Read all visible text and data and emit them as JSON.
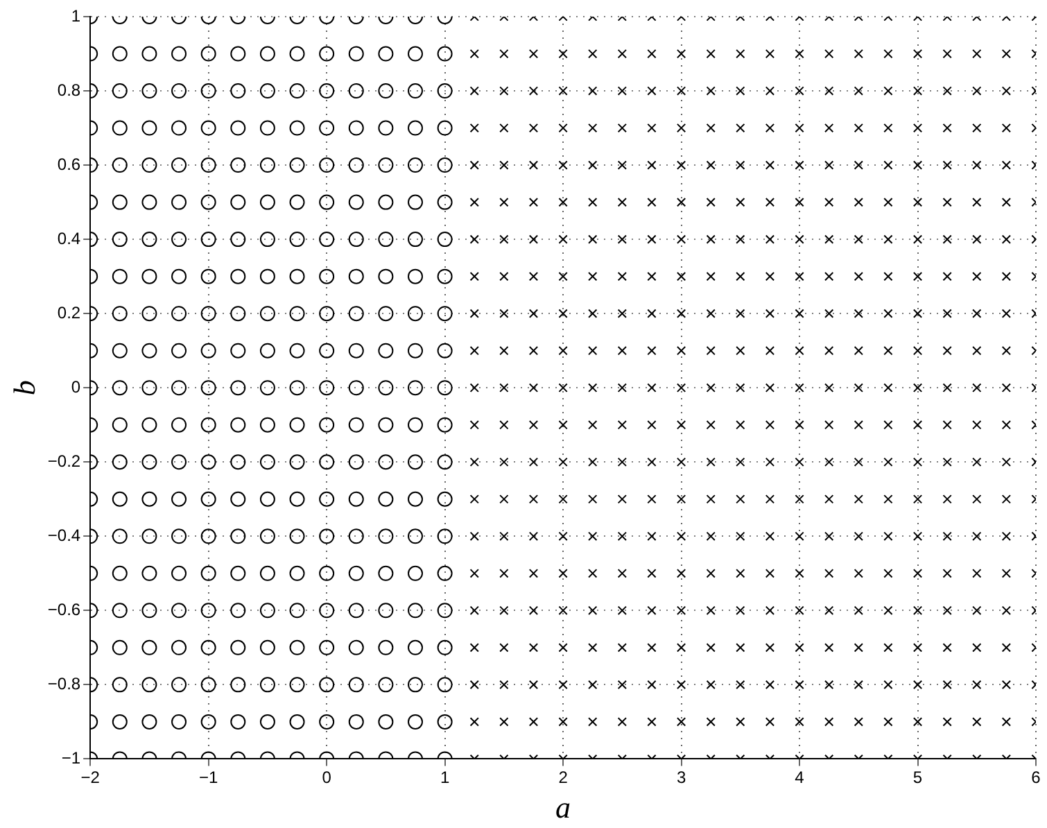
{
  "chart_data": {
    "type": "scatter",
    "xlabel": "a",
    "ylabel": "b",
    "xlim": [
      -2,
      6
    ],
    "xticks": [
      -2,
      -1,
      0,
      1,
      2,
      3,
      4,
      5,
      6
    ],
    "ylim": [
      -1,
      1
    ],
    "yticks": [
      -1,
      -0.8,
      -0.6,
      -0.4,
      -0.2,
      0,
      0.2,
      0.4,
      0.6,
      0.8,
      1
    ],
    "grid": true,
    "legend": false,
    "series": [
      {
        "color": "#000000",
        "marker": "circle",
        "x": [
          -2,
          -1.75,
          -1.5,
          -1.25,
          -1,
          -0.75,
          -0.5,
          -0.25,
          0,
          0.25,
          0.5,
          0.75,
          1,
          -2,
          -1.75,
          -1.5,
          -1.25,
          -1,
          -0.75,
          -0.5,
          -0.25,
          0,
          0.25,
          0.5,
          0.75,
          1,
          -2,
          -1.75,
          -1.5,
          -1.25,
          -1,
          -0.75,
          -0.5,
          -0.25,
          0,
          0.25,
          0.5,
          0.75,
          1,
          -2,
          -1.75,
          -1.5,
          -1.25,
          -1,
          -0.75,
          -0.5,
          -0.25,
          0,
          0.25,
          0.5,
          0.75,
          1,
          -2,
          -1.75,
          -1.5,
          -1.25,
          -1,
          -0.75,
          -0.5,
          -0.25,
          0,
          0.25,
          0.5,
          0.75,
          1,
          -2,
          -1.75,
          -1.5,
          -1.25,
          -1,
          -0.75,
          -0.5,
          -0.25,
          0,
          0.25,
          0.5,
          0.75,
          1,
          -2,
          -1.75,
          -1.5,
          -1.25,
          -1,
          -0.75,
          -0.5,
          -0.25,
          0,
          0.25,
          0.5,
          0.75,
          1,
          -2,
          -1.75,
          -1.5,
          -1.25,
          -1,
          -0.75,
          -0.5,
          -0.25,
          0,
          0.25,
          0.5,
          0.75,
          1,
          -2,
          -1.75,
          -1.5,
          -1.25,
          -1,
          -0.75,
          -0.5,
          -0.25,
          0,
          0.25,
          0.5,
          0.75,
          1,
          -2,
          -1.75,
          -1.5,
          -1.25,
          -1,
          -0.75,
          -0.5,
          -0.25,
          0,
          0.25,
          0.5,
          0.75,
          1,
          -2,
          -1.75,
          -1.5,
          -1.25,
          -1,
          -0.75,
          -0.5,
          -0.25,
          0,
          0.25,
          0.5,
          0.75,
          1,
          -2,
          -1.75,
          -1.5,
          -1.25,
          -1,
          -0.75,
          -0.5,
          -0.25,
          0,
          0.25,
          0.5,
          0.75,
          1,
          -2,
          -1.75,
          -1.5,
          -1.25,
          -1,
          -0.75,
          -0.5,
          -0.25,
          0,
          0.25,
          0.5,
          0.75,
          1,
          -2,
          -1.75,
          -1.5,
          -1.25,
          -1,
          -0.75,
          -0.5,
          -0.25,
          0,
          0.25,
          0.5,
          0.75,
          1,
          -2,
          -1.75,
          -1.5,
          -1.25,
          -1,
          -0.75,
          -0.5,
          -0.25,
          0,
          0.25,
          0.5,
          0.75,
          1,
          -2,
          -1.75,
          -1.5,
          -1.25,
          -1,
          -0.75,
          -0.5,
          -0.25,
          0,
          0.25,
          0.5,
          0.75,
          1,
          -2,
          -1.75,
          -1.5,
          -1.25,
          -1,
          -0.75,
          -0.5,
          -0.25,
          0,
          0.25,
          0.5,
          0.75,
          1,
          -2,
          -1.75,
          -1.5,
          -1.25,
          -1,
          -0.75,
          -0.5,
          -0.25,
          0,
          0.25,
          0.5,
          0.75,
          1,
          -2,
          -1.75,
          -1.5,
          -1.25,
          -1,
          -0.75,
          -0.5,
          -0.25,
          0,
          0.25,
          0.5,
          0.75,
          1,
          -2,
          -1.75,
          -1.5,
          -1.25,
          -1,
          -0.75,
          -0.5,
          -0.25,
          0,
          0.25,
          0.5,
          0.75,
          1,
          -2,
          -1.75,
          -1.5,
          -1.25,
          -1,
          -0.75,
          -0.5,
          -0.25,
          0,
          0.25,
          0.5,
          0.75,
          1
        ],
        "values": [
          -1,
          -1,
          -1,
          -1,
          -1,
          -1,
          -1,
          -1,
          -1,
          -1,
          -1,
          -1,
          -1,
          -0.9,
          -0.9,
          -0.9,
          -0.9,
          -0.9,
          -0.9,
          -0.9,
          -0.9,
          -0.9,
          -0.9,
          -0.9,
          -0.9,
          -0.9,
          -0.8,
          -0.8,
          -0.8,
          -0.8,
          -0.8,
          -0.8,
          -0.8,
          -0.8,
          -0.8,
          -0.8,
          -0.8,
          -0.8,
          -0.8,
          -0.7,
          -0.7,
          -0.7,
          -0.7,
          -0.7,
          -0.7,
          -0.7,
          -0.7,
          -0.7,
          -0.7,
          -0.7,
          -0.7,
          -0.7,
          -0.6,
          -0.6,
          -0.6,
          -0.6,
          -0.6,
          -0.6,
          -0.6,
          -0.6,
          -0.6,
          -0.6,
          -0.6,
          -0.6,
          -0.6,
          -0.5,
          -0.5,
          -0.5,
          -0.5,
          -0.5,
          -0.5,
          -0.5,
          -0.5,
          -0.5,
          -0.5,
          -0.5,
          -0.5,
          -0.5,
          -0.4,
          -0.4,
          -0.4,
          -0.4,
          -0.4,
          -0.4,
          -0.4,
          -0.4,
          -0.4,
          -0.4,
          -0.4,
          -0.4,
          -0.4,
          -0.3,
          -0.3,
          -0.3,
          -0.3,
          -0.3,
          -0.3,
          -0.3,
          -0.3,
          -0.3,
          -0.3,
          -0.3,
          -0.3,
          -0.3,
          -0.2,
          -0.2,
          -0.2,
          -0.2,
          -0.2,
          -0.2,
          -0.2,
          -0.2,
          -0.2,
          -0.2,
          -0.2,
          -0.2,
          -0.2,
          -0.1,
          -0.1,
          -0.1,
          -0.1,
          -0.1,
          -0.1,
          -0.1,
          -0.1,
          -0.1,
          -0.1,
          -0.1,
          -0.1,
          -0.1,
          0,
          0,
          0,
          0,
          0,
          0,
          0,
          0,
          0,
          0,
          0,
          0,
          0,
          0.1,
          0.1,
          0.1,
          0.1,
          0.1,
          0.1,
          0.1,
          0.1,
          0.1,
          0.1,
          0.1,
          0.1,
          0.1,
          0.2,
          0.2,
          0.2,
          0.2,
          0.2,
          0.2,
          0.2,
          0.2,
          0.2,
          0.2,
          0.2,
          0.2,
          0.2,
          0.3,
          0.3,
          0.3,
          0.3,
          0.3,
          0.3,
          0.3,
          0.3,
          0.3,
          0.3,
          0.3,
          0.3,
          0.3,
          0.4,
          0.4,
          0.4,
          0.4,
          0.4,
          0.4,
          0.4,
          0.4,
          0.4,
          0.4,
          0.4,
          0.4,
          0.4,
          0.5,
          0.5,
          0.5,
          0.5,
          0.5,
          0.5,
          0.5,
          0.5,
          0.5,
          0.5,
          0.5,
          0.5,
          0.5,
          0.6,
          0.6,
          0.6,
          0.6,
          0.6,
          0.6,
          0.6,
          0.6,
          0.6,
          0.6,
          0.6,
          0.6,
          0.6,
          0.7,
          0.7,
          0.7,
          0.7,
          0.7,
          0.7,
          0.7,
          0.7,
          0.7,
          0.7,
          0.7,
          0.7,
          0.7,
          0.8,
          0.8,
          0.8,
          0.8,
          0.8,
          0.8,
          0.8,
          0.8,
          0.8,
          0.8,
          0.8,
          0.8,
          0.8,
          0.9,
          0.9,
          0.9,
          0.9,
          0.9,
          0.9,
          0.9,
          0.9,
          0.9,
          0.9,
          0.9,
          0.9,
          0.9,
          1,
          1,
          1,
          1,
          1,
          1,
          1,
          1,
          1,
          1,
          1,
          1,
          1
        ]
      },
      {
        "color": "#000000",
        "marker": "cross",
        "x": [
          1.25,
          1.5,
          1.75,
          2,
          2.25,
          2.5,
          2.75,
          3,
          3.25,
          3.5,
          3.75,
          4,
          4.25,
          4.5,
          4.75,
          5,
          5.25,
          5.5,
          5.75,
          6,
          1.25,
          1.5,
          1.75,
          2,
          2.25,
          2.5,
          2.75,
          3,
          3.25,
          3.5,
          3.75,
          4,
          4.25,
          4.5,
          4.75,
          5,
          5.25,
          5.5,
          5.75,
          6,
          1.25,
          1.5,
          1.75,
          2,
          2.25,
          2.5,
          2.75,
          3,
          3.25,
          3.5,
          3.75,
          4,
          4.25,
          4.5,
          4.75,
          5,
          5.25,
          5.5,
          5.75,
          6,
          1.25,
          1.5,
          1.75,
          2,
          2.25,
          2.5,
          2.75,
          3,
          3.25,
          3.5,
          3.75,
          4,
          4.25,
          4.5,
          4.75,
          5,
          5.25,
          5.5,
          5.75,
          6,
          1.25,
          1.5,
          1.75,
          2,
          2.25,
          2.5,
          2.75,
          3,
          3.25,
          3.5,
          3.75,
          4,
          4.25,
          4.5,
          4.75,
          5,
          5.25,
          5.5,
          5.75,
          6,
          1.25,
          1.5,
          1.75,
          2,
          2.25,
          2.5,
          2.75,
          3,
          3.25,
          3.5,
          3.75,
          4,
          4.25,
          4.5,
          4.75,
          5,
          5.25,
          5.5,
          5.75,
          6,
          1.25,
          1.5,
          1.75,
          2,
          2.25,
          2.5,
          2.75,
          3,
          3.25,
          3.5,
          3.75,
          4,
          4.25,
          4.5,
          4.75,
          5,
          5.25,
          5.5,
          5.75,
          6,
          1.25,
          1.5,
          1.75,
          2,
          2.25,
          2.5,
          2.75,
          3,
          3.25,
          3.5,
          3.75,
          4,
          4.25,
          4.5,
          4.75,
          5,
          5.25,
          5.5,
          5.75,
          6,
          1.25,
          1.5,
          1.75,
          2,
          2.25,
          2.5,
          2.75,
          3,
          3.25,
          3.5,
          3.75,
          4,
          4.25,
          4.5,
          4.75,
          5,
          5.25,
          5.5,
          5.75,
          6,
          1.25,
          1.5,
          1.75,
          2,
          2.25,
          2.5,
          2.75,
          3,
          3.25,
          3.5,
          3.75,
          4,
          4.25,
          4.5,
          4.75,
          5,
          5.25,
          5.5,
          5.75,
          6,
          1.25,
          1.5,
          1.75,
          2,
          2.25,
          2.5,
          2.75,
          3,
          3.25,
          3.5,
          3.75,
          4,
          4.25,
          4.5,
          4.75,
          5,
          5.25,
          5.5,
          5.75,
          6,
          1.25,
          1.5,
          1.75,
          2,
          2.25,
          2.5,
          2.75,
          3,
          3.25,
          3.5,
          3.75,
          4,
          4.25,
          4.5,
          4.75,
          5,
          5.25,
          5.5,
          5.75,
          6,
          1.25,
          1.5,
          1.75,
          2,
          2.25,
          2.5,
          2.75,
          3,
          3.25,
          3.5,
          3.75,
          4,
          4.25,
          4.5,
          4.75,
          5,
          5.25,
          5.5,
          5.75,
          6,
          1.25,
          1.5,
          1.75,
          2,
          2.25,
          2.5,
          2.75,
          3,
          3.25,
          3.5,
          3.75,
          4,
          4.25,
          4.5,
          4.75,
          5,
          5.25,
          5.5,
          5.75,
          6,
          1.25,
          1.5,
          1.75,
          2,
          2.25,
          2.5,
          2.75,
          3,
          3.25,
          3.5,
          3.75,
          4,
          4.25,
          4.5,
          4.75,
          5,
          5.25,
          5.5,
          5.75,
          6,
          1.25,
          1.5,
          1.75,
          2,
          2.25,
          2.5,
          2.75,
          3,
          3.25,
          3.5,
          3.75,
          4,
          4.25,
          4.5,
          4.75,
          5,
          5.25,
          5.5,
          5.75,
          6,
          1.25,
          1.5,
          1.75,
          2,
          2.25,
          2.5,
          2.75,
          3,
          3.25,
          3.5,
          3.75,
          4,
          4.25,
          4.5,
          4.75,
          5,
          5.25,
          5.5,
          5.75,
          6,
          1.25,
          1.5,
          1.75,
          2,
          2.25,
          2.5,
          2.75,
          3,
          3.25,
          3.5,
          3.75,
          4,
          4.25,
          4.5,
          4.75,
          5,
          5.25,
          5.5,
          5.75,
          6,
          1.25,
          1.5,
          1.75,
          2,
          2.25,
          2.5,
          2.75,
          3,
          3.25,
          3.5,
          3.75,
          4,
          4.25,
          4.5,
          4.75,
          5,
          5.25,
          5.5,
          5.75,
          6,
          1.25,
          1.5,
          1.75,
          2,
          2.25,
          2.5,
          2.75,
          3,
          3.25,
          3.5,
          3.75,
          4,
          4.25,
          4.5,
          4.75,
          5,
          5.25,
          5.5,
          5.75,
          6,
          1.25,
          1.5,
          1.75,
          2,
          2.25,
          2.5,
          2.75,
          3,
          3.25,
          3.5,
          3.75,
          4,
          4.25,
          4.5,
          4.75,
          5,
          5.25,
          5.5,
          5.75,
          6
        ],
        "values": [
          -1,
          -1,
          -1,
          -1,
          -1,
          -1,
          -1,
          -1,
          -1,
          -1,
          -1,
          -1,
          -1,
          -1,
          -1,
          -1,
          -1,
          -1,
          -1,
          -1,
          -0.9,
          -0.9,
          -0.9,
          -0.9,
          -0.9,
          -0.9,
          -0.9,
          -0.9,
          -0.9,
          -0.9,
          -0.9,
          -0.9,
          -0.9,
          -0.9,
          -0.9,
          -0.9,
          -0.9,
          -0.9,
          -0.9,
          -0.9,
          -0.8,
          -0.8,
          -0.8,
          -0.8,
          -0.8,
          -0.8,
          -0.8,
          -0.8,
          -0.8,
          -0.8,
          -0.8,
          -0.8,
          -0.8,
          -0.8,
          -0.8,
          -0.8,
          -0.8,
          -0.8,
          -0.8,
          -0.8,
          -0.7,
          -0.7,
          -0.7,
          -0.7,
          -0.7,
          -0.7,
          -0.7,
          -0.7,
          -0.7,
          -0.7,
          -0.7,
          -0.7,
          -0.7,
          -0.7,
          -0.7,
          -0.7,
          -0.7,
          -0.7,
          -0.7,
          -0.7,
          -0.6,
          -0.6,
          -0.6,
          -0.6,
          -0.6,
          -0.6,
          -0.6,
          -0.6,
          -0.6,
          -0.6,
          -0.6,
          -0.6,
          -0.6,
          -0.6,
          -0.6,
          -0.6,
          -0.6,
          -0.6,
          -0.6,
          -0.6,
          -0.5,
          -0.5,
          -0.5,
          -0.5,
          -0.5,
          -0.5,
          -0.5,
          -0.5,
          -0.5,
          -0.5,
          -0.5,
          -0.5,
          -0.5,
          -0.5,
          -0.5,
          -0.5,
          -0.5,
          -0.5,
          -0.5,
          -0.5,
          -0.4,
          -0.4,
          -0.4,
          -0.4,
          -0.4,
          -0.4,
          -0.4,
          -0.4,
          -0.4,
          -0.4,
          -0.4,
          -0.4,
          -0.4,
          -0.4,
          -0.4,
          -0.4,
          -0.4,
          -0.4,
          -0.4,
          -0.4,
          -0.3,
          -0.3,
          -0.3,
          -0.3,
          -0.3,
          -0.3,
          -0.3,
          -0.3,
          -0.3,
          -0.3,
          -0.3,
          -0.3,
          -0.3,
          -0.3,
          -0.3,
          -0.3,
          -0.3,
          -0.3,
          -0.3,
          -0.3,
          -0.2,
          -0.2,
          -0.2,
          -0.2,
          -0.2,
          -0.2,
          -0.2,
          -0.2,
          -0.2,
          -0.2,
          -0.2,
          -0.2,
          -0.2,
          -0.2,
          -0.2,
          -0.2,
          -0.2,
          -0.2,
          -0.2,
          -0.2,
          -0.1,
          -0.1,
          -0.1,
          -0.1,
          -0.1,
          -0.1,
          -0.1,
          -0.1,
          -0.1,
          -0.1,
          -0.1,
          -0.1,
          -0.1,
          -0.1,
          -0.1,
          -0.1,
          -0.1,
          -0.1,
          -0.1,
          -0.1,
          0,
          0,
          0,
          0,
          0,
          0,
          0,
          0,
          0,
          0,
          0,
          0,
          0,
          0,
          0,
          0,
          0,
          0,
          0,
          0,
          0.1,
          0.1,
          0.1,
          0.1,
          0.1,
          0.1,
          0.1,
          0.1,
          0.1,
          0.1,
          0.1,
          0.1,
          0.1,
          0.1,
          0.1,
          0.1,
          0.1,
          0.1,
          0.1,
          0.1,
          0.2,
          0.2,
          0.2,
          0.2,
          0.2,
          0.2,
          0.2,
          0.2,
          0.2,
          0.2,
          0.2,
          0.2,
          0.2,
          0.2,
          0.2,
          0.2,
          0.2,
          0.2,
          0.2,
          0.2,
          0.3,
          0.3,
          0.3,
          0.3,
          0.3,
          0.3,
          0.3,
          0.3,
          0.3,
          0.3,
          0.3,
          0.3,
          0.3,
          0.3,
          0.3,
          0.3,
          0.3,
          0.3,
          0.3,
          0.3,
          0.4,
          0.4,
          0.4,
          0.4,
          0.4,
          0.4,
          0.4,
          0.4,
          0.4,
          0.4,
          0.4,
          0.4,
          0.4,
          0.4,
          0.4,
          0.4,
          0.4,
          0.4,
          0.4,
          0.4,
          0.5,
          0.5,
          0.5,
          0.5,
          0.5,
          0.5,
          0.5,
          0.5,
          0.5,
          0.5,
          0.5,
          0.5,
          0.5,
          0.5,
          0.5,
          0.5,
          0.5,
          0.5,
          0.5,
          0.5,
          0.6,
          0.6,
          0.6,
          0.6,
          0.6,
          0.6,
          0.6,
          0.6,
          0.6,
          0.6,
          0.6,
          0.6,
          0.6,
          0.6,
          0.6,
          0.6,
          0.6,
          0.6,
          0.6,
          0.6,
          0.7,
          0.7,
          0.7,
          0.7,
          0.7,
          0.7,
          0.7,
          0.7,
          0.7,
          0.7,
          0.7,
          0.7,
          0.7,
          0.7,
          0.7,
          0.7,
          0.7,
          0.7,
          0.7,
          0.7,
          0.8,
          0.8,
          0.8,
          0.8,
          0.8,
          0.8,
          0.8,
          0.8,
          0.8,
          0.8,
          0.8,
          0.8,
          0.8,
          0.8,
          0.8,
          0.8,
          0.8,
          0.8,
          0.8,
          0.8,
          0.9,
          0.9,
          0.9,
          0.9,
          0.9,
          0.9,
          0.9,
          0.9,
          0.9,
          0.9,
          0.9,
          0.9,
          0.9,
          0.9,
          0.9,
          0.9,
          0.9,
          0.9,
          0.9,
          0.9,
          1,
          1,
          1,
          1,
          1,
          1,
          1,
          1,
          1,
          1,
          1,
          1,
          1,
          1,
          1,
          1,
          1,
          1,
          1,
          1
        ]
      }
    ]
  }
}
